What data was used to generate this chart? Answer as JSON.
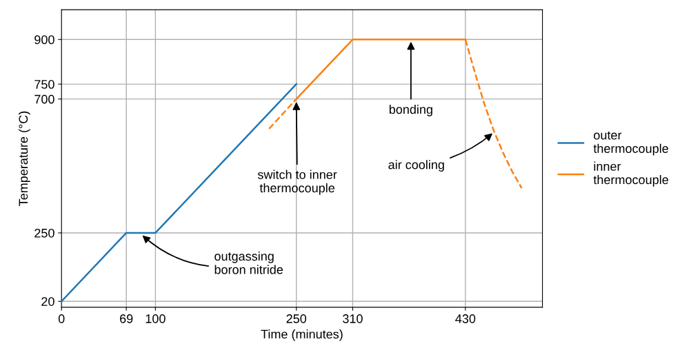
{
  "chart_data": {
    "type": "line",
    "xlabel": "Time (minutes)",
    "ylabel": "Temperature (°C)",
    "xlim": [
      0,
      512
    ],
    "ylim": [
      0,
      1000
    ],
    "xticks": [
      0,
      69,
      100,
      250,
      310,
      430
    ],
    "yticks": [
      20,
      250,
      700,
      750,
      900
    ],
    "grid": true,
    "legend": "right",
    "line_style": "solid",
    "marker": "none",
    "series": [
      {
        "name": "outer\nthermocouple",
        "color": "#1f77b4",
        "x": [
          0,
          69,
          100,
          250
        ],
        "values": [
          20,
          250,
          250,
          750
        ]
      },
      {
        "name": "inner\nthermocouple",
        "color": "#ff7f0e",
        "x": [
          250,
          310,
          430
        ],
        "values": [
          700,
          900,
          900
        ]
      },
      {
        "color": "#ff7f0e",
        "line_style": "dashed",
        "x": [
          221,
          250
        ],
        "values": [
          600,
          700
        ]
      },
      {
        "color": "#ff7f0e",
        "line_style": "dashed",
        "x": [
          430,
          440,
          450,
          460,
          470,
          480,
          490
        ],
        "values": [
          900,
          790,
          685,
          595,
          520,
          455,
          400
        ]
      }
    ],
    "annotations": [
      {
        "text": "outgassing\nboron nitride",
        "x": 86,
        "y": 242
      },
      {
        "text": "switch to inner\nthermocouple",
        "x": 250,
        "y": 690
      },
      {
        "text": "bonding",
        "x": 372,
        "y": 893
      },
      {
        "text": "air cooling",
        "x": 459,
        "y": 585
      }
    ]
  }
}
